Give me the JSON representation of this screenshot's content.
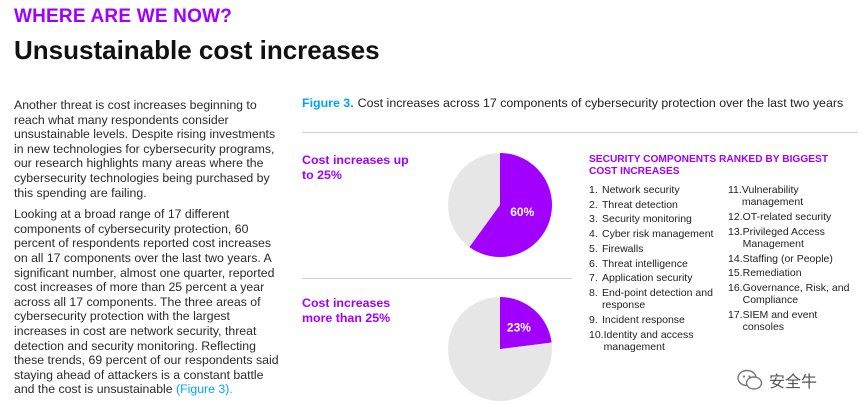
{
  "header": {
    "kicker": "WHERE ARE WE NOW?",
    "title": "Unsustainable cost increases"
  },
  "body": {
    "paragraph1": "Another threat is cost increases beginning to reach what many respondents consider unsustainable levels. Despite rising investments in new technologies for cybersecurity programs, our research highlights many areas where the cybersecurity technologies being purchased by this spending are failing.",
    "paragraph2": "Looking at a broad range of 17 different components of cybersecurity protection, 60 percent of respondents reported cost increases on all 17 components over the last two years. A significant number, almost one quarter, reported cost increases of more than 25 percent a year across all 17 components. The three areas of cybersecurity protection with the largest increases in cost are network security, threat detection and security monitoring. Reflecting these trends, 69 percent of our respondents said staying ahead of attackers is a constant battle and the cost is unsustainable",
    "figure_ref": "(Figure 3)."
  },
  "figure": {
    "number": "Figure 3.",
    "caption": "Cost increases across 17 components of cybersecurity protection over the last two years",
    "pies": [
      {
        "label": "Cost increases up to 25%",
        "value": 60,
        "value_label": "60%"
      },
      {
        "label": "Cost increases more than 25%",
        "value": 23,
        "value_label": "23%"
      }
    ],
    "colors": {
      "accent": "#a100ff",
      "remainder": "#e6e6e6",
      "link": "#00a4ff"
    }
  },
  "ranking": {
    "title": "SECURITY COMPONENTS RANKED BY BIGGEST COST INCREASES",
    "items": [
      {
        "num": "1.",
        "text": "Network security"
      },
      {
        "num": "2.",
        "text": "Threat detection"
      },
      {
        "num": "3.",
        "text": "Security monitoring"
      },
      {
        "num": "4.",
        "text": "Cyber risk management"
      },
      {
        "num": "5.",
        "text": "Firewalls"
      },
      {
        "num": "6.",
        "text": "Threat intelligence"
      },
      {
        "num": "7.",
        "text": "Application security"
      },
      {
        "num": "8.",
        "text": "End-point detection and response"
      },
      {
        "num": "9.",
        "text": "Incident response"
      },
      {
        "num": "10.",
        "text": "Identity and access management"
      },
      {
        "num": "11.",
        "text": "Vulnerability management"
      },
      {
        "num": "12.",
        "text": "OT-related security"
      },
      {
        "num": "13.",
        "text": "Privileged Access Management"
      },
      {
        "num": "14.",
        "text": "Staffing (or People)"
      },
      {
        "num": "15.",
        "text": "Remediation"
      },
      {
        "num": "16.",
        "text": "Governance, Risk, and Compliance"
      },
      {
        "num": "17.",
        "text": "SIEM and event consoles"
      }
    ]
  },
  "watermark": {
    "icon": "wechat-icon",
    "text": "安全牛"
  }
}
